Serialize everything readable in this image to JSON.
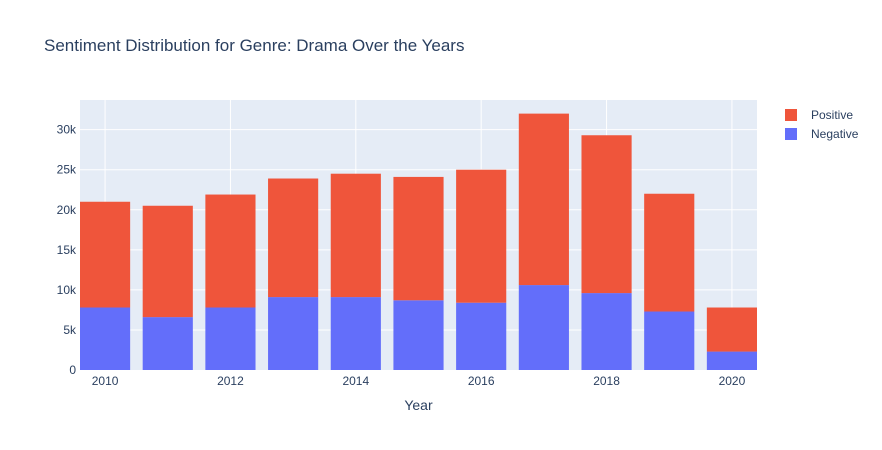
{
  "chart_data": {
    "type": "bar",
    "barmode": "stack",
    "title": "Sentiment Distribution for Genre: Drama Over the Years",
    "xlabel": "Year",
    "ylabel": "",
    "x": [
      2010,
      2011,
      2012,
      2013,
      2014,
      2015,
      2016,
      2017,
      2018,
      2019,
      2020
    ],
    "x_tick_labels": [
      "2010",
      "2012",
      "2014",
      "2016",
      "2018",
      "2020"
    ],
    "y_tick_labels": [
      "0",
      "5k",
      "10k",
      "15k",
      "20k",
      "25k",
      "30k"
    ],
    "ylim": [
      0,
      33700
    ],
    "grid": true,
    "legend_position": "top-right",
    "series": [
      {
        "name": "Negative",
        "color": "#636efa",
        "values": [
          7800,
          6600,
          7800,
          9100,
          9100,
          8700,
          8400,
          10600,
          9600,
          7300,
          2300
        ]
      },
      {
        "name": "Positive",
        "color": "#ef553b",
        "values": [
          13200,
          13900,
          14100,
          14800,
          15400,
          15400,
          16600,
          21400,
          19700,
          14700,
          5500
        ]
      }
    ],
    "legend_order": [
      "Positive",
      "Negative"
    ]
  }
}
